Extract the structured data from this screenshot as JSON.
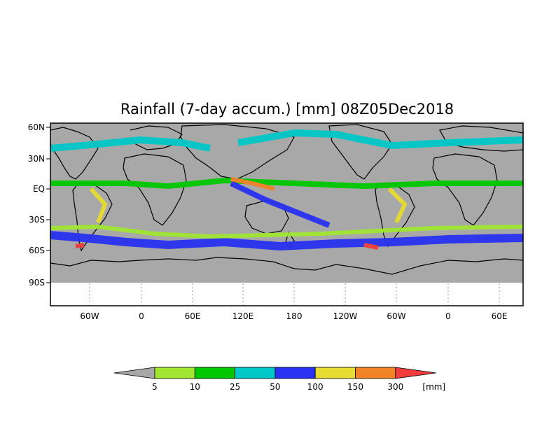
{
  "title": "Rainfall (7-day accum.) [mm] 08Z05Dec2018",
  "map": {
    "lat_labels": [
      "60N",
      "30N",
      "EQ",
      "30S",
      "60S",
      "90S"
    ],
    "lon_labels": [
      "60W",
      "0",
      "60E",
      "120E",
      "180",
      "120W",
      "60W",
      "0",
      "60E"
    ],
    "background_color": "#a8a8a8",
    "nodata_color": "#ffffff"
  },
  "legend": {
    "unit": "[mm]",
    "bins": [
      {
        "label": "",
        "color": "#a8a8a8"
      },
      {
        "label": "5",
        "color": "#a0e632"
      },
      {
        "label": "10",
        "color": "#00c800"
      },
      {
        "label": "25",
        "color": "#00c8c8"
      },
      {
        "label": "50",
        "color": "#2832f0"
      },
      {
        "label": "100",
        "color": "#e6dc32"
      },
      {
        "label": "150",
        "color": "#f08228"
      },
      {
        "label": "300",
        "color": "#f03c3c"
      }
    ]
  }
}
